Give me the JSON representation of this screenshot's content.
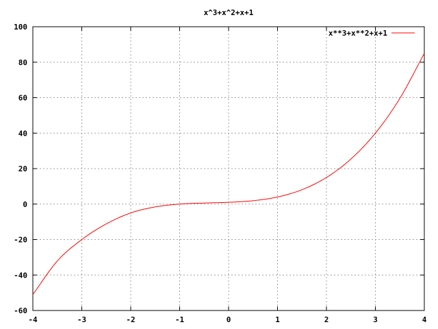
{
  "chart_data": {
    "type": "line",
    "title": "x^3+x^2+x+1",
    "xlabel": "",
    "ylabel": "",
    "xlim": [
      -4,
      4
    ],
    "ylim": [
      -60,
      100
    ],
    "x_ticks": [
      -4,
      -3,
      -2,
      -1,
      0,
      1,
      2,
      3,
      4
    ],
    "y_ticks": [
      -60,
      -40,
      -20,
      0,
      20,
      40,
      60,
      80,
      100
    ],
    "grid": true,
    "legend_position": "top-right",
    "series": [
      {
        "name": "x**3+x**2+x+1",
        "color": "#ff0000",
        "x": [
          -4,
          -3.5,
          -3,
          -2.5,
          -2,
          -1.5,
          -1,
          -0.5,
          0,
          0.5,
          1,
          1.5,
          2,
          2.5,
          3,
          3.5,
          4
        ],
        "y": [
          -51,
          -32.1,
          -20,
          -11.2,
          -5,
          -1.6,
          0,
          0.6,
          1,
          1.9,
          4,
          8.1,
          15,
          25.4,
          40,
          59.6,
          85
        ]
      }
    ]
  }
}
